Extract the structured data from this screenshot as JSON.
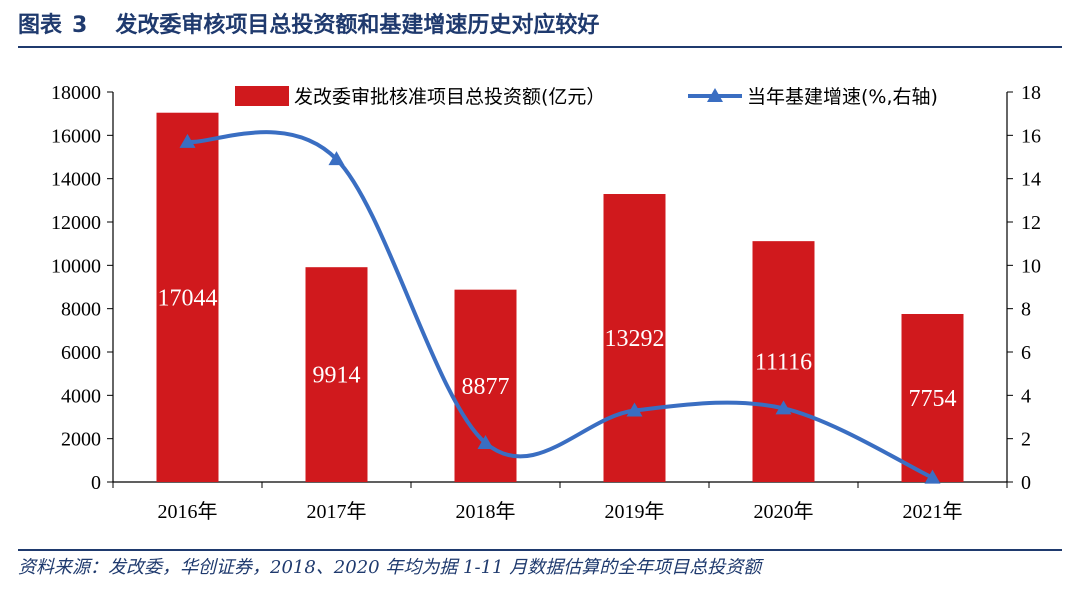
{
  "figure": {
    "label": "图表",
    "number": "3",
    "title": "发改委审核项目总投资额和基建增速历史对应较好"
  },
  "source": "资料来源：发改委，华创证券，2018、2020 年均为据 1-11 月数据估算的全年项目总投资额",
  "colors": {
    "bar": "#d0191d",
    "line": "#3a6ec2",
    "accent": "#1f3a6e"
  },
  "chart_data": {
    "type": "bar",
    "categories": [
      "2016年",
      "2017年",
      "2018年",
      "2019年",
      "2020年",
      "2021年"
    ],
    "series": [
      {
        "name": "发改委审批核准项目总投资额(亿元）",
        "type": "bar",
        "axis": "left",
        "values": [
          17044,
          9914,
          8877,
          13292,
          11116,
          7754
        ]
      },
      {
        "name": "当年基建增速(%,右轴)",
        "type": "line",
        "axis": "right",
        "values": [
          15.7,
          14.9,
          1.8,
          3.3,
          3.4,
          0.2
        ]
      }
    ],
    "ylim_left": [
      0,
      18000
    ],
    "yticks_left": [
      0,
      2000,
      4000,
      6000,
      8000,
      10000,
      12000,
      14000,
      16000,
      18000
    ],
    "ylim_right": [
      0,
      18
    ],
    "yticks_right": [
      0,
      2,
      4,
      6,
      8,
      10,
      12,
      14,
      16,
      18
    ],
    "data_labels": [
      "17044",
      "9914",
      "8877",
      "13292",
      "11116",
      "7754"
    ],
    "grid": false,
    "legend_position": "top"
  }
}
